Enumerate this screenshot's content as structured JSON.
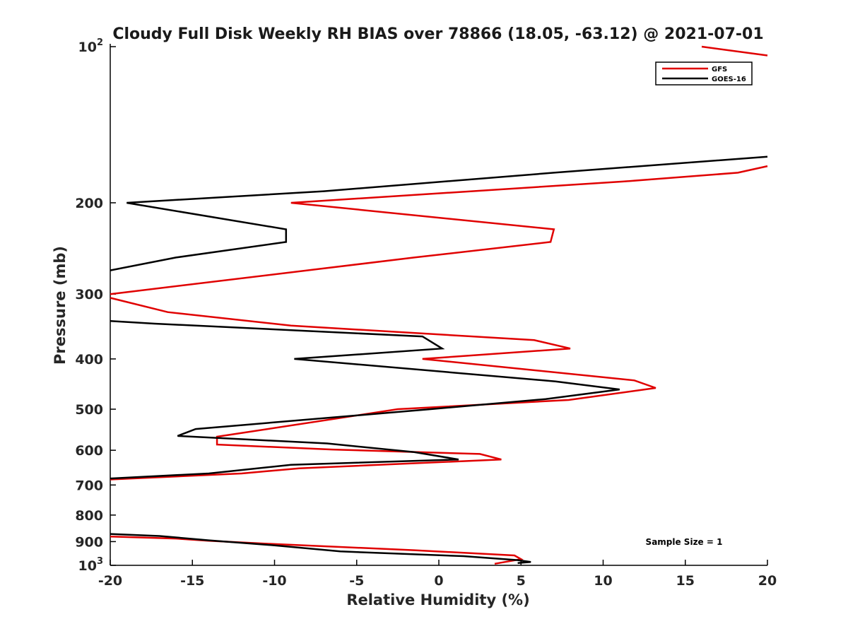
{
  "chart_data": {
    "type": "line",
    "title": "Cloudy Full Disk Weekly RH BIAS over 78866 (18.05, -63.12) @ 2021-07-01",
    "xlabel": "Relative Humidity (%)",
    "ylabel": "Pressure (mb)",
    "xlim": [
      -20,
      20
    ],
    "ylim": [
      1000,
      100
    ],
    "y_scale": "log",
    "y_reversed": true,
    "grid": false,
    "legend_position": "top-right",
    "annotation": "Sample Size = 1",
    "x_ticks": [
      {
        "value": -20,
        "label": "-20"
      },
      {
        "value": -15,
        "label": "-15"
      },
      {
        "value": -10,
        "label": "-10"
      },
      {
        "value": -5,
        "label": "-5"
      },
      {
        "value": 0,
        "label": "0"
      },
      {
        "value": 5,
        "label": "5"
      },
      {
        "value": 10,
        "label": "10"
      },
      {
        "value": 15,
        "label": "15"
      },
      {
        "value": 20,
        "label": "20"
      }
    ],
    "y_ticks": [
      {
        "value": 100,
        "base": "10",
        "exp": "2"
      },
      {
        "value": 200,
        "label": "200"
      },
      {
        "value": 300,
        "label": "300"
      },
      {
        "value": 400,
        "label": "400"
      },
      {
        "value": 500,
        "label": "500"
      },
      {
        "value": 600,
        "label": "600"
      },
      {
        "value": 700,
        "label": "700"
      },
      {
        "value": 800,
        "label": "800"
      },
      {
        "value": 900,
        "label": "900"
      },
      {
        "value": 1000,
        "base": "10",
        "exp": "3"
      }
    ],
    "series": [
      {
        "name": "GFS",
        "color": "#e00000",
        "segments": [
          [
            [
              16,
              100
            ],
            [
              20,
              104
            ]
          ],
          [
            [
              20,
              170
            ],
            [
              18.2,
              175
            ],
            [
              11.2,
              182
            ],
            [
              -9.0,
              200
            ],
            [
              7.0,
              225
            ],
            [
              6.8,
              238
            ],
            [
              -1.5,
              255
            ],
            [
              -20,
              300
            ]
          ],
          [
            [
              -20,
              305
            ],
            [
              -16.5,
              325
            ],
            [
              -9,
              345
            ],
            [
              5.8,
              368
            ],
            [
              8.0,
              382
            ],
            [
              -1.0,
              400
            ],
            [
              11.9,
              440
            ],
            [
              13.2,
              455
            ],
            [
              7.9,
              480
            ],
            [
              -2.5,
              500
            ],
            [
              -13.5,
              565
            ],
            [
              -13.5,
              585
            ],
            [
              -6.5,
              598
            ],
            [
              2.5,
              610
            ],
            [
              3.8,
              625
            ],
            [
              -8.5,
              650
            ],
            [
              -12.0,
              665
            ],
            [
              -20,
              683
            ]
          ],
          [
            [
              -20,
              880
            ],
            [
              -16,
              888
            ],
            [
              -14,
              897
            ],
            [
              -10,
              910
            ],
            [
              -1.5,
              935
            ],
            [
              4.6,
              957
            ],
            [
              5.0,
              973
            ],
            [
              3.4,
              993
            ]
          ]
        ]
      },
      {
        "name": "GOES-16",
        "color": "#000000",
        "segments": [
          [
            [
              20,
              163
            ],
            [
              7.0,
              175
            ],
            [
              -7.0,
              190
            ],
            [
              -19.0,
              200
            ],
            [
              -9.3,
              225
            ],
            [
              -9.3,
              238
            ],
            [
              -16.0,
              255
            ],
            [
              -20,
              270
            ]
          ],
          [
            [
              -20,
              338
            ],
            [
              -17.3,
              342
            ],
            [
              -1.0,
              362
            ],
            [
              0.2,
              382
            ],
            [
              -8.8,
              400
            ],
            [
              7.1,
              442
            ],
            [
              11.0,
              458
            ],
            [
              6.5,
              478
            ],
            [
              -0.5,
              500
            ],
            [
              -14.8,
              546
            ],
            [
              -15.9,
              563
            ],
            [
              -6.8,
              582
            ],
            [
              -1.5,
              605
            ],
            [
              1.2,
              625
            ],
            [
              -9.0,
              640
            ],
            [
              -14.0,
              665
            ],
            [
              -20,
              680
            ]
          ],
          [
            [
              -20,
              870
            ],
            [
              -17,
              878
            ],
            [
              -14,
              895
            ],
            [
              -10,
              915
            ],
            [
              -6,
              940
            ],
            [
              1.5,
              960
            ],
            [
              4.8,
              977
            ],
            [
              5.6,
              985
            ],
            [
              4.8,
              990
            ]
          ]
        ]
      }
    ]
  }
}
